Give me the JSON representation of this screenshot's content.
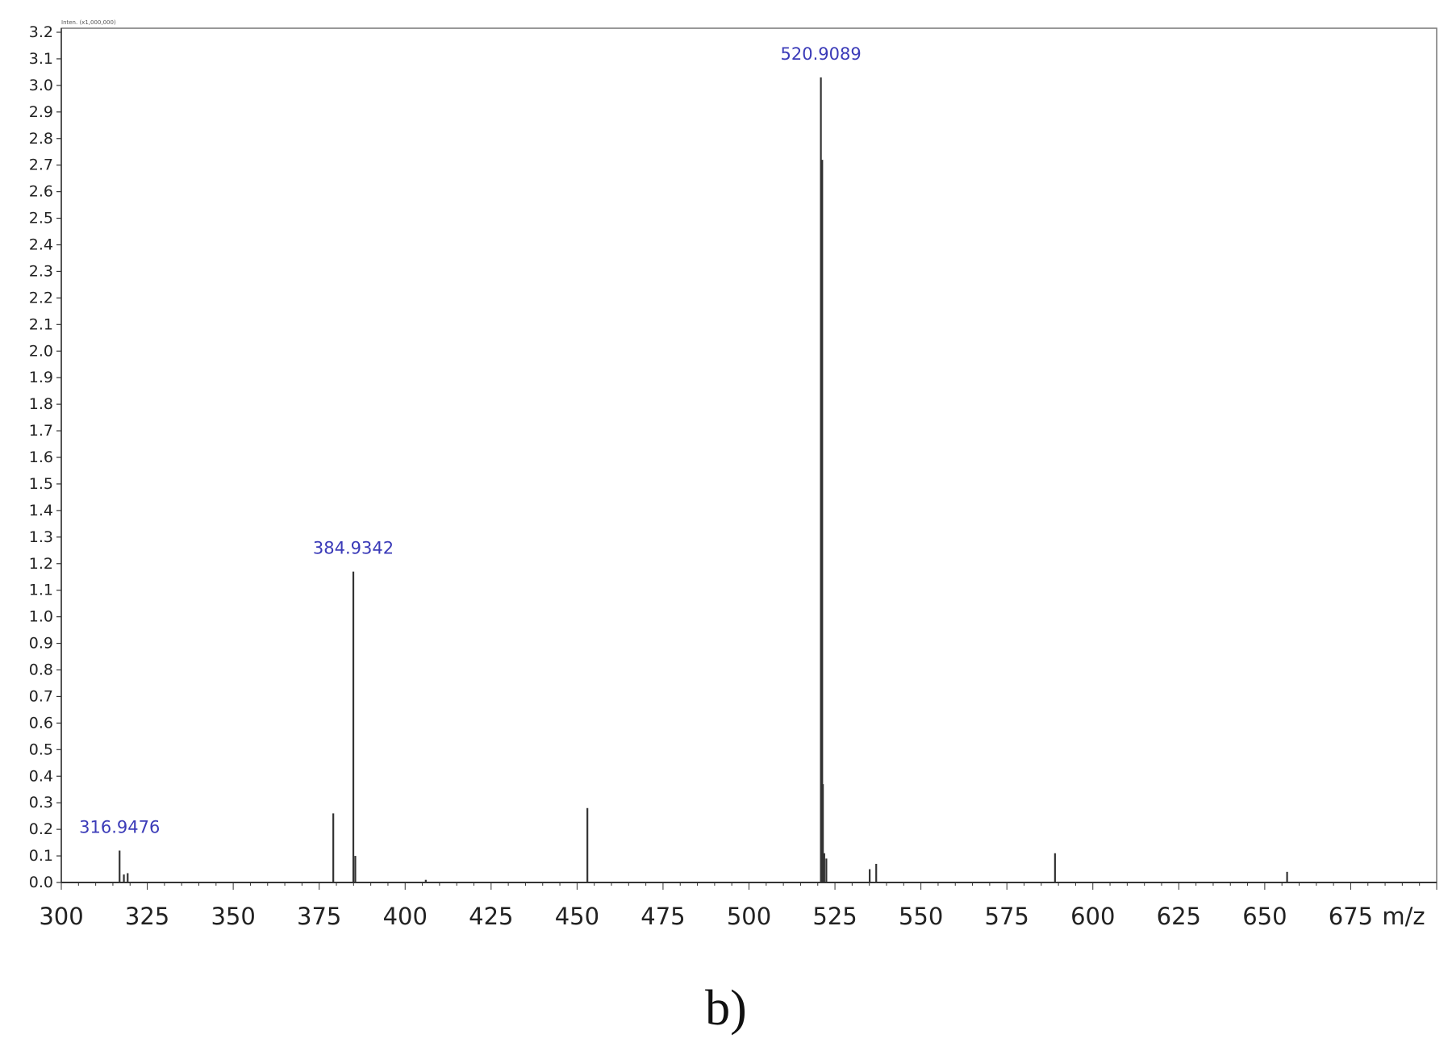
{
  "chart_data": {
    "type": "bar",
    "header": "Inten. (x1,000,000)",
    "xlabel": "m/z",
    "xlim": [
      300,
      700
    ],
    "ylim": [
      0,
      3.2
    ],
    "xticks": [
      300,
      325,
      350,
      375,
      400,
      425,
      450,
      475,
      500,
      525,
      550,
      575,
      600,
      625,
      650,
      675
    ],
    "yticks": [
      "0.0",
      "0.1",
      "0.2",
      "0.3",
      "0.4",
      "0.5",
      "0.6",
      "0.7",
      "0.8",
      "0.9",
      "1.0",
      "1.1",
      "1.2",
      "1.3",
      "1.4",
      "1.5",
      "1.6",
      "1.7",
      "1.8",
      "1.9",
      "2.0",
      "2.1",
      "2.2",
      "2.3",
      "2.4",
      "2.5",
      "2.6",
      "2.7",
      "2.8",
      "2.9",
      "3.0",
      "3.1",
      "3.2"
    ],
    "peaks": [
      {
        "mz": 316.9476,
        "intensity": 0.12
      },
      {
        "mz": 318.2,
        "intensity": 0.03
      },
      {
        "mz": 319.3,
        "intensity": 0.035
      },
      {
        "mz": 379.1,
        "intensity": 0.26
      },
      {
        "mz": 384.9342,
        "intensity": 1.17
      },
      {
        "mz": 385.5,
        "intensity": 0.1
      },
      {
        "mz": 406.0,
        "intensity": 0.01
      },
      {
        "mz": 453.0,
        "intensity": 0.28
      },
      {
        "mz": 520.9089,
        "intensity": 3.03
      },
      {
        "mz": 521.3,
        "intensity": 2.72
      },
      {
        "mz": 521.5,
        "intensity": 0.37
      },
      {
        "mz": 521.9,
        "intensity": 0.11
      },
      {
        "mz": 522.5,
        "intensity": 0.09
      },
      {
        "mz": 535.1,
        "intensity": 0.05
      },
      {
        "mz": 537.0,
        "intensity": 0.07
      },
      {
        "mz": 589.0,
        "intensity": 0.11
      },
      {
        "mz": 656.5,
        "intensity": 0.04
      }
    ],
    "peak_labels": [
      {
        "mz": 316.9476,
        "text": "316.9476"
      },
      {
        "mz": 384.9342,
        "text": "384.9342"
      },
      {
        "mz": 520.9089,
        "text": "520.9089"
      }
    ],
    "colors": {
      "peak": "#333333",
      "peak_label": "#3b3bb8",
      "axis": "#333333"
    }
  },
  "caption": "b)"
}
